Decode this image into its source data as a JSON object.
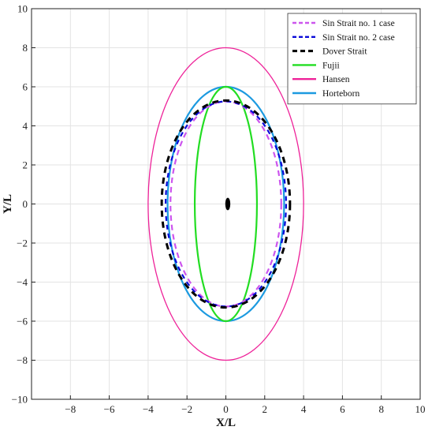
{
  "chart_data": {
    "type": "line",
    "title": "",
    "xlabel": "X/L",
    "ylabel": "Y/L",
    "xlim": [
      -10,
      10
    ],
    "ylim": [
      -10,
      10
    ],
    "xticks": [
      -8,
      -6,
      -4,
      -2,
      0,
      2,
      4,
      6,
      8,
      10
    ],
    "yticks": [
      -10,
      -8,
      -6,
      -4,
      -2,
      0,
      2,
      4,
      6,
      8,
      10
    ],
    "grid": true,
    "legend_position": "top-right",
    "series": [
      {
        "name": "Sin Strait no. 1 case",
        "shape": "ellipse",
        "cx": 0,
        "cy": 0,
        "semi_x": 2.85,
        "semi_y": 5.25,
        "color": "#cc55ee",
        "style": "dashed"
      },
      {
        "name": "Sin Strait no. 2 case",
        "shape": "ellipse",
        "cx": 0,
        "cy": 0,
        "semi_x": 3.1,
        "semi_y": 5.25,
        "color": "#0a0ad8",
        "style": "dashed"
      },
      {
        "name": "Dover Strait",
        "shape": "ellipse",
        "cx": 0,
        "cy": 0,
        "semi_x": 3.3,
        "semi_y": 5.3,
        "color": "#000000",
        "style": "dashed"
      },
      {
        "name": "Fujii",
        "shape": "ellipse",
        "cx": 0,
        "cy": 0,
        "semi_x": 1.6,
        "semi_y": 6.0,
        "color": "#22dd22",
        "style": "solid"
      },
      {
        "name": "Hansen",
        "shape": "ellipse",
        "cx": 0,
        "cy": 0,
        "semi_x": 4.0,
        "semi_y": 8.0,
        "color": "#ee2299",
        "style": "solid"
      },
      {
        "name": "Horteborn",
        "shape": "ellipse",
        "cx": 0,
        "cy": 0,
        "semi_x": 3.0,
        "semi_y": 6.0,
        "color": "#1c9ae0",
        "style": "solid"
      }
    ],
    "ship_marker": {
      "cx": 0.1,
      "cy": 0,
      "semi_x": 0.13,
      "semi_y": 0.32,
      "color": "#000000"
    }
  }
}
